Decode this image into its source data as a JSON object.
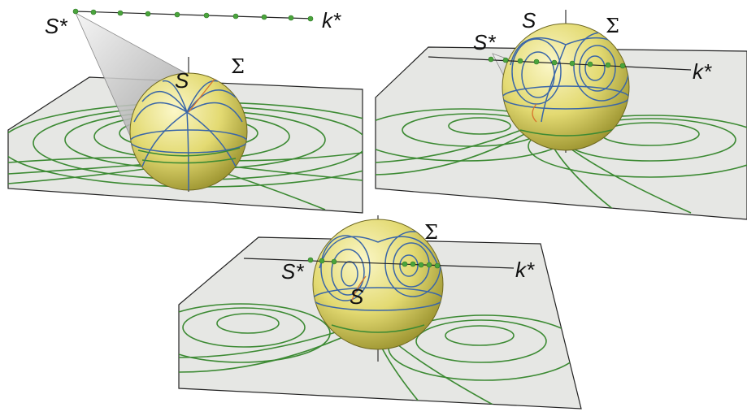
{
  "panels": [
    {
      "S_star": "S*",
      "k_star": "k*",
      "S": "S",
      "Sigma": "Σ"
    },
    {
      "S_star": "S*",
      "k_star": "k*",
      "S": "S",
      "Sigma": "Σ"
    },
    {
      "S_star": "S*",
      "k_star": "k*",
      "S": "S",
      "Sigma": "Σ"
    }
  ],
  "colors": {
    "plane": "#e6e7e4",
    "sphere": "#e6df7c",
    "green_curves": "#3c8a33",
    "blue_curves": "#3a66a8",
    "cone": "#d9d9d9"
  }
}
